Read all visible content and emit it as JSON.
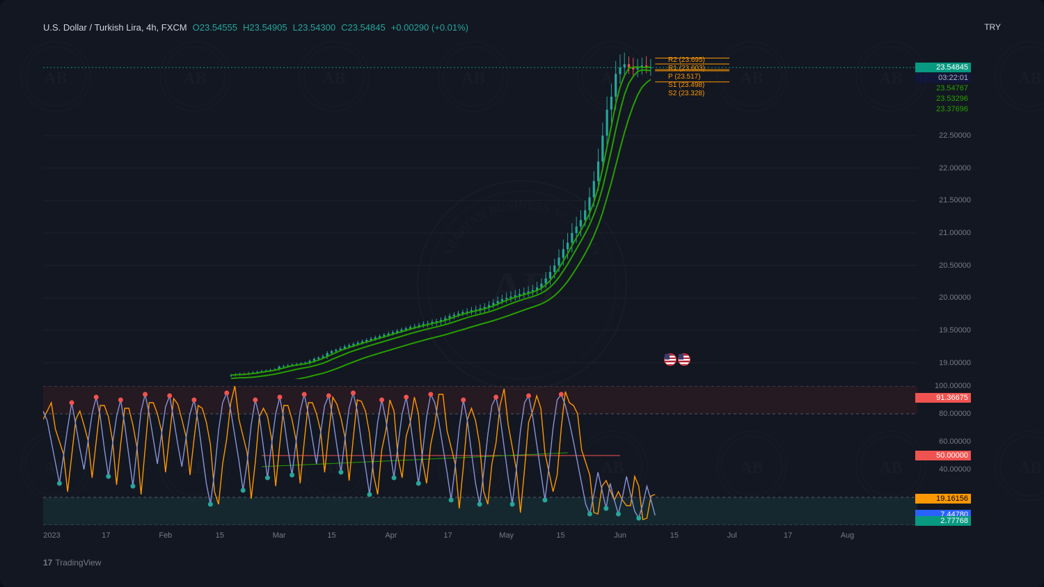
{
  "header": {
    "symbol": "U.S. Dollar / Turkish Lira, 4h, FXCM",
    "o_label": "O",
    "o": "23.54555",
    "h_label": "H",
    "h": "23.54905",
    "l_label": "L",
    "l": "23.54300",
    "c_label": "C",
    "c": "23.54845",
    "chg": "+0.00290 (+0.01%)",
    "currency_code": "TRY"
  },
  "branding": {
    "text": "TradingView",
    "logo_glyph": "17"
  },
  "colors": {
    "bg": "#131722",
    "grid": "#1e222d",
    "text_muted": "#787b86",
    "candle_up": "#26a69a",
    "candle_down": "#ef5350",
    "ma_line": "#26a000",
    "osc_line1": "#8894d8",
    "osc_line2": "#ff9800",
    "osc_dot_hi": "#ef5350",
    "osc_dot_lo": "#26a69a",
    "osc_band_top_fill": "rgba(120,40,40,0.18)",
    "osc_band_bot_fill": "rgba(38,166,154,0.12)",
    "dashed": "#555867",
    "pivot": "#ff9800"
  },
  "price_chart": {
    "type": "candlestick",
    "ylim": [
      18.75,
      24.0
    ],
    "yticks": [
      19.0,
      19.5,
      20.0,
      20.5,
      21.0,
      21.5,
      22.0,
      22.5
    ],
    "ytick_labels": [
      "19.00000",
      "19.50000",
      "20.00000",
      "20.50000",
      "21.00000",
      "21.50000",
      "22.00000",
      "22.50000"
    ],
    "current_price_dotted": 23.54845,
    "ma_badges": [
      {
        "value": "23.54845",
        "bg": "#089981",
        "fg": "#ffffff"
      },
      {
        "value": "03:22:01",
        "bg": "#121639",
        "fg": "#b0b4c0"
      },
      {
        "value": "23.54767",
        "bg": "transparent",
        "fg": "#26a000"
      },
      {
        "value": "23.53296",
        "bg": "transparent",
        "fg": "#26a000"
      },
      {
        "value": "23.37696",
        "bg": "transparent",
        "fg": "#26a000"
      }
    ],
    "pivots": [
      {
        "label": "R2",
        "value": "(23.695)"
      },
      {
        "label": "R1",
        "value": "(23.603)"
      },
      {
        "label": "P",
        "value": "(23.517)"
      },
      {
        "label": "S1",
        "value": "(23.498)"
      },
      {
        "label": "S2",
        "value": "(23.328)"
      }
    ],
    "ma_curves": [
      {
        "offset": 0
      },
      {
        "offset": 0.05
      },
      {
        "offset": 0.18
      }
    ],
    "series": [
      {
        "t": 0.215,
        "o": 18.8,
        "h": 18.83,
        "l": 18.78,
        "c": 18.81
      },
      {
        "t": 0.22,
        "o": 18.81,
        "h": 18.84,
        "l": 18.79,
        "c": 18.82
      },
      {
        "t": 0.225,
        "o": 18.82,
        "h": 18.85,
        "l": 18.8,
        "c": 18.83
      },
      {
        "t": 0.23,
        "o": 18.83,
        "h": 18.85,
        "l": 18.81,
        "c": 18.82
      },
      {
        "t": 0.235,
        "o": 18.82,
        "h": 18.86,
        "l": 18.81,
        "c": 18.84
      },
      {
        "t": 0.24,
        "o": 18.84,
        "h": 18.87,
        "l": 18.83,
        "c": 18.85
      },
      {
        "t": 0.245,
        "o": 18.85,
        "h": 18.88,
        "l": 18.84,
        "c": 18.86
      },
      {
        "t": 0.25,
        "o": 18.86,
        "h": 18.89,
        "l": 18.85,
        "c": 18.87
      },
      {
        "t": 0.255,
        "o": 18.87,
        "h": 18.9,
        "l": 18.86,
        "c": 18.88
      },
      {
        "t": 0.26,
        "o": 18.88,
        "h": 18.91,
        "l": 18.87,
        "c": 18.89
      },
      {
        "t": 0.265,
        "o": 18.89,
        "h": 18.92,
        "l": 18.88,
        "c": 18.9
      },
      {
        "t": 0.27,
        "o": 18.9,
        "h": 18.96,
        "l": 18.88,
        "c": 18.94
      },
      {
        "t": 0.275,
        "o": 18.94,
        "h": 18.97,
        "l": 18.92,
        "c": 18.95
      },
      {
        "t": 0.28,
        "o": 18.95,
        "h": 18.98,
        "l": 18.93,
        "c": 18.96
      },
      {
        "t": 0.285,
        "o": 18.96,
        "h": 18.99,
        "l": 18.94,
        "c": 18.97
      },
      {
        "t": 0.29,
        "o": 18.97,
        "h": 19.0,
        "l": 18.95,
        "c": 18.98
      },
      {
        "t": 0.295,
        "o": 18.98,
        "h": 19.01,
        "l": 18.96,
        "c": 18.99
      },
      {
        "t": 0.3,
        "o": 18.99,
        "h": 19.02,
        "l": 18.97,
        "c": 19.0
      },
      {
        "t": 0.305,
        "o": 19.0,
        "h": 19.05,
        "l": 18.97,
        "c": 19.03
      },
      {
        "t": 0.31,
        "o": 19.03,
        "h": 19.08,
        "l": 19.0,
        "c": 19.06
      },
      {
        "t": 0.315,
        "o": 19.06,
        "h": 19.1,
        "l": 19.03,
        "c": 19.08
      },
      {
        "t": 0.32,
        "o": 19.08,
        "h": 19.13,
        "l": 19.07,
        "c": 19.1
      },
      {
        "t": 0.325,
        "o": 19.1,
        "h": 19.18,
        "l": 19.06,
        "c": 19.15
      },
      {
        "t": 0.33,
        "o": 19.15,
        "h": 19.2,
        "l": 19.12,
        "c": 19.18
      },
      {
        "t": 0.335,
        "o": 19.18,
        "h": 19.22,
        "l": 19.15,
        "c": 19.2
      },
      {
        "t": 0.34,
        "o": 19.2,
        "h": 19.25,
        "l": 19.18,
        "c": 19.22
      },
      {
        "t": 0.345,
        "o": 19.22,
        "h": 19.28,
        "l": 19.2,
        "c": 19.25
      },
      {
        "t": 0.35,
        "o": 19.25,
        "h": 19.3,
        "l": 19.22,
        "c": 19.27
      },
      {
        "t": 0.355,
        "o": 19.27,
        "h": 19.32,
        "l": 19.24,
        "c": 19.29
      },
      {
        "t": 0.36,
        "o": 19.29,
        "h": 19.34,
        "l": 19.26,
        "c": 19.31
      },
      {
        "t": 0.365,
        "o": 19.31,
        "h": 19.36,
        "l": 19.28,
        "c": 19.33
      },
      {
        "t": 0.37,
        "o": 19.33,
        "h": 19.38,
        "l": 19.3,
        "c": 19.35
      },
      {
        "t": 0.375,
        "o": 19.35,
        "h": 19.4,
        "l": 19.32,
        "c": 19.37
      },
      {
        "t": 0.38,
        "o": 19.37,
        "h": 19.42,
        "l": 19.34,
        "c": 19.39
      },
      {
        "t": 0.385,
        "o": 19.39,
        "h": 19.44,
        "l": 19.36,
        "c": 19.41
      },
      {
        "t": 0.39,
        "o": 19.41,
        "h": 19.46,
        "l": 19.38,
        "c": 19.43
      },
      {
        "t": 0.395,
        "o": 19.43,
        "h": 19.48,
        "l": 19.4,
        "c": 19.45
      },
      {
        "t": 0.4,
        "o": 19.45,
        "h": 19.5,
        "l": 19.42,
        "c": 19.47
      },
      {
        "t": 0.405,
        "o": 19.47,
        "h": 19.52,
        "l": 19.44,
        "c": 19.49
      },
      {
        "t": 0.41,
        "o": 19.49,
        "h": 19.54,
        "l": 19.46,
        "c": 19.51
      },
      {
        "t": 0.415,
        "o": 19.51,
        "h": 19.56,
        "l": 19.48,
        "c": 19.53
      },
      {
        "t": 0.42,
        "o": 19.53,
        "h": 19.58,
        "l": 19.5,
        "c": 19.55
      },
      {
        "t": 0.425,
        "o": 19.55,
        "h": 19.6,
        "l": 19.52,
        "c": 19.56
      },
      {
        "t": 0.43,
        "o": 19.56,
        "h": 19.62,
        "l": 19.53,
        "c": 19.58
      },
      {
        "t": 0.435,
        "o": 19.58,
        "h": 19.64,
        "l": 19.54,
        "c": 19.6
      },
      {
        "t": 0.44,
        "o": 19.6,
        "h": 19.65,
        "l": 19.55,
        "c": 19.61
      },
      {
        "t": 0.445,
        "o": 19.61,
        "h": 19.67,
        "l": 19.56,
        "c": 19.63
      },
      {
        "t": 0.45,
        "o": 19.63,
        "h": 19.68,
        "l": 19.57,
        "c": 19.64
      },
      {
        "t": 0.455,
        "o": 19.64,
        "h": 19.7,
        "l": 19.58,
        "c": 19.66
      },
      {
        "t": 0.46,
        "o": 19.66,
        "h": 19.73,
        "l": 19.6,
        "c": 19.69
      },
      {
        "t": 0.465,
        "o": 19.69,
        "h": 19.76,
        "l": 19.63,
        "c": 19.72
      },
      {
        "t": 0.47,
        "o": 19.72,
        "h": 19.78,
        "l": 19.67,
        "c": 19.74
      },
      {
        "t": 0.475,
        "o": 19.74,
        "h": 19.8,
        "l": 19.7,
        "c": 19.76
      },
      {
        "t": 0.48,
        "o": 19.76,
        "h": 19.82,
        "l": 19.72,
        "c": 19.78
      },
      {
        "t": 0.485,
        "o": 19.78,
        "h": 19.84,
        "l": 19.73,
        "c": 19.79
      },
      {
        "t": 0.49,
        "o": 19.79,
        "h": 19.86,
        "l": 19.74,
        "c": 19.81
      },
      {
        "t": 0.495,
        "o": 19.81,
        "h": 19.88,
        "l": 19.75,
        "c": 19.82
      },
      {
        "t": 0.5,
        "o": 19.82,
        "h": 19.9,
        "l": 19.76,
        "c": 19.84
      },
      {
        "t": 0.505,
        "o": 19.84,
        "h": 19.92,
        "l": 19.77,
        "c": 19.86
      },
      {
        "t": 0.51,
        "o": 19.86,
        "h": 19.95,
        "l": 19.8,
        "c": 19.89
      },
      {
        "t": 0.515,
        "o": 19.89,
        "h": 19.98,
        "l": 19.84,
        "c": 19.92
      },
      {
        "t": 0.52,
        "o": 19.92,
        "h": 20.02,
        "l": 19.87,
        "c": 19.95
      },
      {
        "t": 0.525,
        "o": 19.95,
        "h": 20.05,
        "l": 19.9,
        "c": 19.98
      },
      {
        "t": 0.53,
        "o": 19.98,
        "h": 20.08,
        "l": 19.92,
        "c": 20.0
      },
      {
        "t": 0.535,
        "o": 20.0,
        "h": 20.1,
        "l": 19.94,
        "c": 20.02
      },
      {
        "t": 0.54,
        "o": 20.02,
        "h": 20.12,
        "l": 19.96,
        "c": 20.04
      },
      {
        "t": 0.545,
        "o": 20.04,
        "h": 20.14,
        "l": 19.98,
        "c": 20.06
      },
      {
        "t": 0.55,
        "o": 20.06,
        "h": 20.16,
        "l": 20.0,
        "c": 20.08
      },
      {
        "t": 0.555,
        "o": 20.08,
        "h": 20.18,
        "l": 20.02,
        "c": 20.1
      },
      {
        "t": 0.56,
        "o": 20.1,
        "h": 20.2,
        "l": 20.04,
        "c": 20.12
      },
      {
        "t": 0.565,
        "o": 20.12,
        "h": 20.25,
        "l": 20.06,
        "c": 20.16
      },
      {
        "t": 0.57,
        "o": 20.16,
        "h": 20.3,
        "l": 20.1,
        "c": 20.22
      },
      {
        "t": 0.575,
        "o": 20.22,
        "h": 20.4,
        "l": 20.15,
        "c": 20.3
      },
      {
        "t": 0.58,
        "o": 20.3,
        "h": 20.5,
        "l": 20.2,
        "c": 20.4
      },
      {
        "t": 0.585,
        "o": 20.4,
        "h": 20.6,
        "l": 20.3,
        "c": 20.5
      },
      {
        "t": 0.59,
        "o": 20.5,
        "h": 20.75,
        "l": 20.4,
        "c": 20.62
      },
      {
        "t": 0.595,
        "o": 20.62,
        "h": 20.9,
        "l": 20.5,
        "c": 20.75
      },
      {
        "t": 0.6,
        "o": 20.75,
        "h": 21.0,
        "l": 20.6,
        "c": 20.85
      },
      {
        "t": 0.605,
        "o": 20.85,
        "h": 21.15,
        "l": 20.7,
        "c": 21.0
      },
      {
        "t": 0.61,
        "o": 21.0,
        "h": 21.25,
        "l": 20.85,
        "c": 21.1
      },
      {
        "t": 0.615,
        "o": 21.1,
        "h": 21.35,
        "l": 20.95,
        "c": 21.2
      },
      {
        "t": 0.62,
        "o": 21.2,
        "h": 21.5,
        "l": 21.1,
        "c": 21.35
      },
      {
        "t": 0.625,
        "o": 21.35,
        "h": 21.7,
        "l": 21.2,
        "c": 21.55
      },
      {
        "t": 0.63,
        "o": 21.55,
        "h": 21.95,
        "l": 21.4,
        "c": 21.8
      },
      {
        "t": 0.635,
        "o": 21.8,
        "h": 22.3,
        "l": 21.65,
        "c": 22.1
      },
      {
        "t": 0.64,
        "o": 22.1,
        "h": 22.7,
        "l": 21.95,
        "c": 22.5
      },
      {
        "t": 0.645,
        "o": 22.5,
        "h": 23.1,
        "l": 22.3,
        "c": 22.9
      },
      {
        "t": 0.65,
        "o": 22.9,
        "h": 23.3,
        "l": 22.7,
        "c": 23.1
      },
      {
        "t": 0.655,
        "o": 23.1,
        "h": 23.65,
        "l": 22.9,
        "c": 23.45
      },
      {
        "t": 0.66,
        "o": 23.45,
        "h": 23.75,
        "l": 23.3,
        "c": 23.55
      },
      {
        "t": 0.665,
        "o": 23.55,
        "h": 23.78,
        "l": 23.4,
        "c": 23.6
      },
      {
        "t": 0.67,
        "o": 23.6,
        "h": 23.72,
        "l": 23.45,
        "c": 23.55
      },
      {
        "t": 0.675,
        "o": 23.55,
        "h": 23.7,
        "l": 23.41,
        "c": 23.52
      },
      {
        "t": 0.68,
        "o": 23.52,
        "h": 23.68,
        "l": 23.4,
        "c": 23.56
      },
      {
        "t": 0.685,
        "o": 23.56,
        "h": 23.7,
        "l": 23.44,
        "c": 23.58
      },
      {
        "t": 0.69,
        "o": 23.58,
        "h": 23.72,
        "l": 23.46,
        "c": 23.54
      },
      {
        "t": 0.695,
        "o": 23.54,
        "h": 23.68,
        "l": 23.42,
        "c": 23.55
      }
    ]
  },
  "oscillator": {
    "type": "stochastic",
    "ylim": [
      0,
      100
    ],
    "yticks": [
      40,
      60,
      80,
      100
    ],
    "ytick_labels": [
      "40.00000",
      "60.00000",
      "80.00000",
      "100.00000"
    ],
    "bands": {
      "upper": 80,
      "lower": 20,
      "top_dash": 100,
      "bot_dash": 0,
      "mid": 50
    },
    "badges": [
      {
        "value": "91.36675",
        "bg": "#ef5350",
        "fg": "#ffffff",
        "y": 91.37
      },
      {
        "value": "50.00000",
        "bg": "#ef5350",
        "fg": "#ffffff",
        "y": 50
      },
      {
        "value": "19.16156",
        "bg": "#ff9800",
        "fg": "#000000",
        "y": 19.16
      },
      {
        "value": "7.44780",
        "bg": "#2962ff",
        "fg": "#ffffff",
        "y": 7.45
      },
      {
        "value": "2.77768",
        "bg": "#089981",
        "fg": "#ffffff",
        "y": 2.78
      }
    ],
    "mid_line": {
      "from_t": 0.25,
      "to_t": 0.66,
      "y": 50
    },
    "green_line": {
      "from_t": 0.25,
      "to_t": 0.6,
      "from_y": 42,
      "to_y": 52
    },
    "line1": [
      82,
      75,
      60,
      45,
      30,
      50,
      70,
      88,
      72,
      55,
      40,
      60,
      80,
      92,
      78,
      55,
      35,
      58,
      78,
      90,
      72,
      50,
      28,
      55,
      82,
      94,
      80,
      62,
      44,
      65,
      85,
      93,
      76,
      58,
      42,
      62,
      80,
      90,
      74,
      52,
      30,
      15,
      38,
      68,
      88,
      95,
      82,
      64,
      46,
      25,
      45,
      72,
      90,
      78,
      56,
      34,
      58,
      80,
      92,
      76,
      55,
      36,
      60,
      82,
      94,
      80,
      62,
      44,
      66,
      86,
      93,
      77,
      57,
      38,
      62,
      84,
      95,
      82,
      60,
      42,
      22,
      48,
      74,
      90,
      76,
      54,
      34,
      58,
      80,
      92,
      74,
      52,
      30,
      52,
      78,
      94,
      88,
      74,
      56,
      38,
      18,
      42,
      70,
      90,
      75,
      52,
      30,
      15,
      38,
      65,
      86,
      92,
      78,
      56,
      34,
      15,
      40,
      68,
      88,
      93,
      78,
      58,
      38,
      18,
      42,
      70,
      90,
      94,
      86,
      74,
      60,
      45,
      30,
      15,
      8,
      22,
      38,
      25,
      12,
      30,
      18,
      8,
      20,
      35,
      22,
      10,
      5,
      15,
      28,
      18,
      7
    ],
    "line2_offset": 6
  },
  "x_axis": {
    "ticks": [
      {
        "t": 0.01,
        "label": "2023"
      },
      {
        "t": 0.072,
        "label": "17"
      },
      {
        "t": 0.14,
        "label": "Feb"
      },
      {
        "t": 0.202,
        "label": "15"
      },
      {
        "t": 0.27,
        "label": "Mar"
      },
      {
        "t": 0.33,
        "label": "15"
      },
      {
        "t": 0.398,
        "label": "Apr"
      },
      {
        "t": 0.463,
        "label": "17"
      },
      {
        "t": 0.53,
        "label": "May"
      },
      {
        "t": 0.592,
        "label": "15"
      },
      {
        "t": 0.66,
        "label": "Jun"
      },
      {
        "t": 0.722,
        "label": "15"
      },
      {
        "t": 0.788,
        "label": "Jul"
      },
      {
        "t": 0.852,
        "label": "17"
      },
      {
        "t": 0.92,
        "label": "Aug"
      }
    ]
  },
  "flag_icons": {
    "t": 0.71,
    "price": 19.05
  }
}
